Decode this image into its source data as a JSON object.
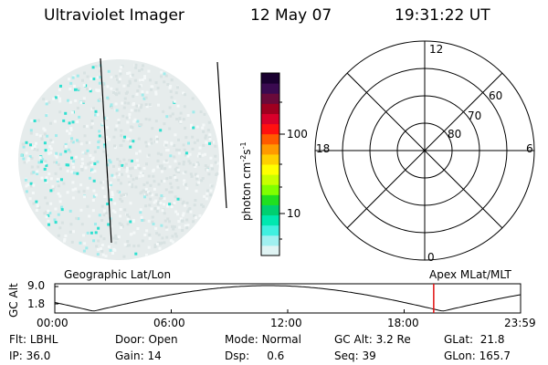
{
  "header": {
    "instrument": "Ultraviolet Imager",
    "date": "12 May 07",
    "time": "19:31:22 UT"
  },
  "colorbar": {
    "unit_label": "photon cm-2s-1",
    "tick_labels": [
      "100",
      "10"
    ],
    "colors": [
      "#1a0030",
      "#3a0a50",
      "#6a0a3a",
      "#a00020",
      "#d8002a",
      "#ff1010",
      "#ff5a00",
      "#ff9a00",
      "#ffd000",
      "#ffff00",
      "#c8ff00",
      "#80ff00",
      "#20e020",
      "#00d070",
      "#00e8b0",
      "#40f0e0",
      "#a0f0f0",
      "#e0f4f4"
    ]
  },
  "polar_plot": {
    "mlt_labels": {
      "top": "12",
      "left": "18",
      "right": "6",
      "bottom": "0"
    },
    "lat_labels": [
      "60",
      "70",
      "80"
    ]
  },
  "timeline": {
    "geo_label": "Geographic Lat/Lon",
    "apex_label": "Apex MLat/MLT",
    "y_title": "GC Alt",
    "y_ticks": [
      "9.0",
      "1.8"
    ],
    "x_ticks": [
      "00:00",
      "06:00",
      "12:00",
      "18:00",
      "23:59"
    ],
    "marker_time": "19:31:22",
    "marker_color": "#e01010"
  },
  "info": {
    "row1": [
      {
        "label": "Flt:",
        "value": "LBHL"
      },
      {
        "label": "Door:",
        "value": "Open"
      },
      {
        "label": "Mode:",
        "value": "Normal"
      },
      {
        "label": "GC Alt:",
        "value": "3.2 Re"
      },
      {
        "label": "GLat:",
        "value": "21.8"
      }
    ],
    "row2": [
      {
        "label": "IP:",
        "value": "36.0"
      },
      {
        "label": "Gain:",
        "value": "14"
      },
      {
        "label": "Dsp:",
        "value": "0.6"
      },
      {
        "label": "Seq:",
        "value": "39"
      },
      {
        "label": "GLon:",
        "value": "165.7"
      }
    ]
  }
}
